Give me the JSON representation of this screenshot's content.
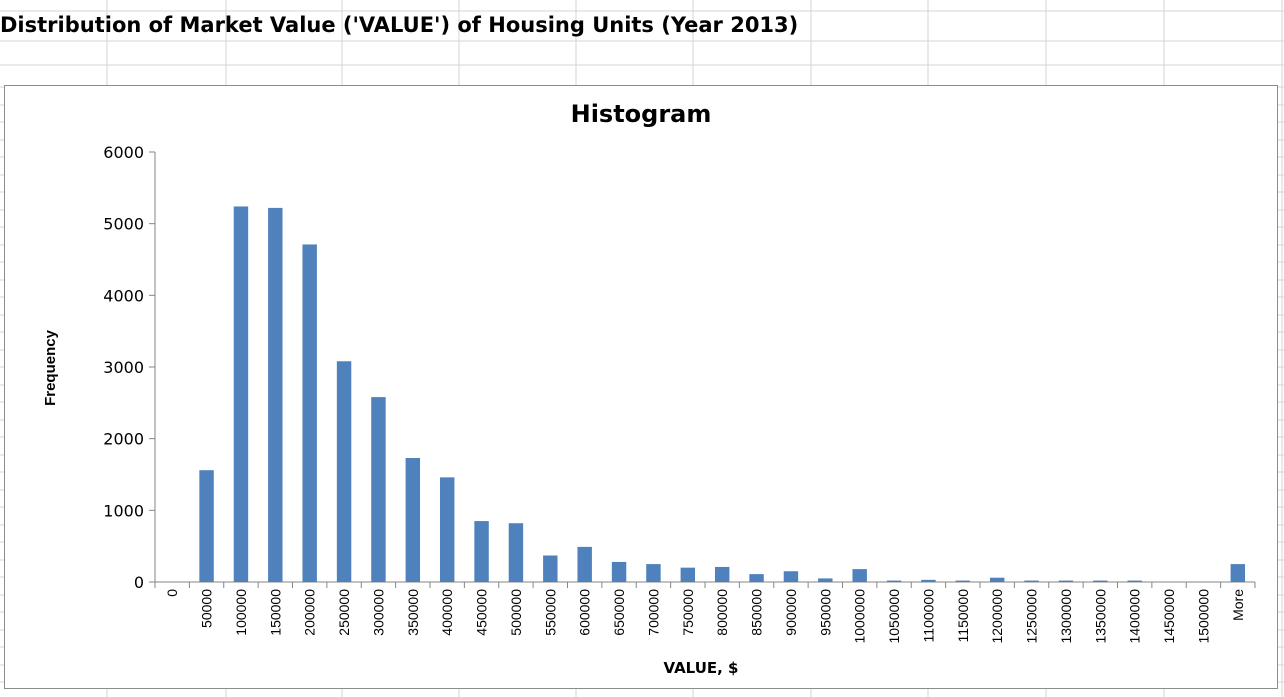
{
  "sheet": {
    "title": "Distribution of Market Value ('VALUE') of Housing Units (Year 2013)"
  },
  "chart_data": {
    "type": "bar",
    "title": "Histogram",
    "xlabel": "VALUE, $",
    "ylabel": "Frequency",
    "ylim": [
      0,
      6000
    ],
    "yticks": [
      0,
      1000,
      2000,
      3000,
      4000,
      5000,
      6000
    ],
    "grid": false,
    "legend": "none",
    "bar_color": "#4f81bd",
    "categories": [
      "0",
      "50000",
      "100000",
      "150000",
      "200000",
      "250000",
      "300000",
      "350000",
      "400000",
      "450000",
      "500000",
      "550000",
      "600000",
      "650000",
      "700000",
      "750000",
      "800000",
      "850000",
      "900000",
      "950000",
      "1000000",
      "1050000",
      "1100000",
      "1150000",
      "1200000",
      "1250000",
      "1300000",
      "1350000",
      "1400000",
      "1450000",
      "1500000",
      "More"
    ],
    "values": [
      0,
      1560,
      5240,
      5220,
      4710,
      3080,
      2580,
      1730,
      1460,
      850,
      820,
      370,
      490,
      280,
      250,
      200,
      210,
      110,
      150,
      50,
      180,
      20,
      30,
      20,
      60,
      20,
      20,
      20,
      20,
      0,
      0,
      250
    ]
  }
}
